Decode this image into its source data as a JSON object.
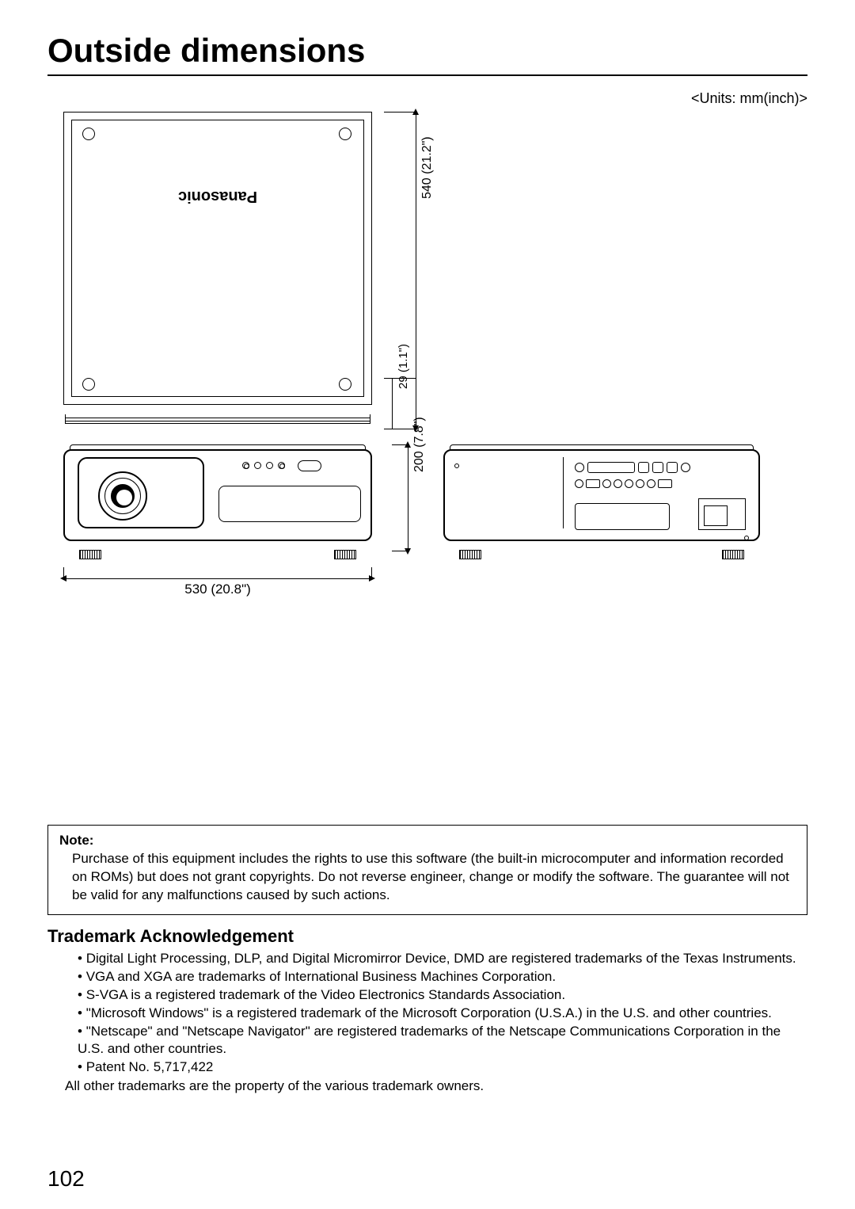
{
  "title": "Outside dimensions",
  "units_label": "<Units: mm(inch)>",
  "brand": "Panasonic",
  "dimensions": {
    "depth": "540 (21.2\")",
    "offset": "29 (1.1\")",
    "width": "530 (20.8\")",
    "height": "200 (7.8\")"
  },
  "note": {
    "heading": "Note:",
    "body": "Purchase of this equipment includes the rights to use this software (the built-in microcomputer and information recorded on ROMs) but does not grant copyrights. Do not reverse engineer, change or modify the software. The guarantee will not be valid for any malfunctions caused by such actions."
  },
  "trademark": {
    "heading": "Trademark Acknowledgement",
    "items": [
      "Digital Light Processing, DLP, and Digital Micromirror Device, DMD are registered trademarks of the Texas Instruments.",
      "VGA and XGA are trademarks of International Business Machines Corporation.",
      "S-VGA is a registered trademark of the Video Electronics Standards Association.",
      "\"Microsoft Windows\" is a registered trademark of the Microsoft Corporation (U.S.A.) in the U.S. and other countries.",
      "\"Netscape\" and \"Netscape Navigator\" are registered trademarks of the Netscape Communications Corporation in the U.S. and other countries.",
      "Patent No. 5,717,422"
    ],
    "footer": "All other trademarks are the property of the various trademark owners."
  },
  "page_number": "102"
}
